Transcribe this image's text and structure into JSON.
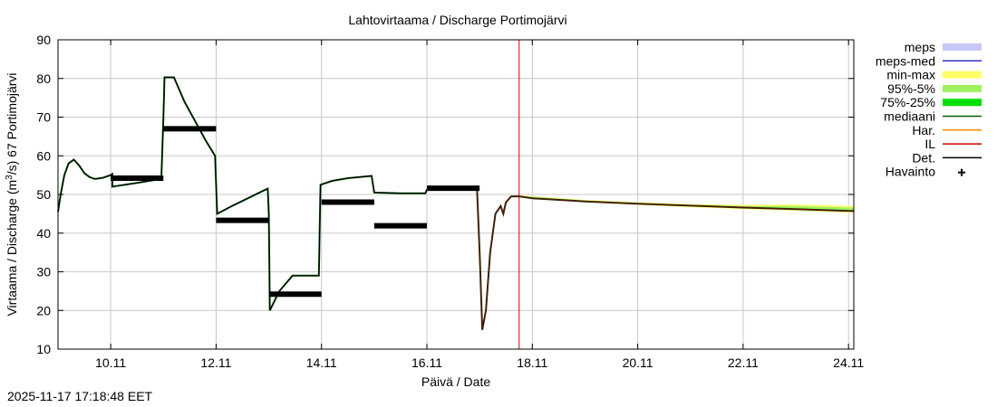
{
  "chart_data": {
    "type": "line",
    "title": "Lahtovirtaama / Discharge  Portimojärvi",
    "xlabel": "Päivä / Date",
    "ylabel_main": "Virtaama / Discharge (m",
    "ylabel_sup": "3",
    "ylabel_tail": "/s)  67 Portimojärvi",
    "timestamp": "2025-11-17 17:18:48 EET",
    "xlim": [
      9.0,
      24.1
    ],
    "ylim": [
      10,
      90
    ],
    "yticks": [
      10,
      20,
      30,
      40,
      50,
      60,
      70,
      80,
      90
    ],
    "xticks": [
      {
        "v": 10.0,
        "label": "10.11"
      },
      {
        "v": 12.0,
        "label": "12.11"
      },
      {
        "v": 14.0,
        "label": "14.11"
      },
      {
        "v": 16.0,
        "label": "16.11"
      },
      {
        "v": 18.0,
        "label": "18.11"
      },
      {
        "v": 20.0,
        "label": "20.11"
      },
      {
        "v": 22.0,
        "label": "22.11"
      },
      {
        "v": 24.0,
        "label": "24.11"
      }
    ],
    "now_x": 17.75,
    "legend": [
      {
        "label": "meps",
        "kind": "band",
        "color": "#c8c8f8"
      },
      {
        "label": "meps-med",
        "kind": "line",
        "color": "#3030c0"
      },
      {
        "label": "min-max",
        "kind": "band",
        "color": "#ffff66"
      },
      {
        "label": "95%-5%",
        "kind": "band",
        "color": "#a0f060"
      },
      {
        "label": "75%-25%",
        "kind": "band",
        "color": "#00e000"
      },
      {
        "label": "mediaani",
        "kind": "line",
        "color": "#006400"
      },
      {
        "label": "Har.",
        "kind": "line",
        "color": "#ff8c00"
      },
      {
        "label": "IL",
        "kind": "line",
        "color": "#cc0000"
      },
      {
        "label": "Det.",
        "kind": "line",
        "color": "#000000"
      },
      {
        "label": "Havainto",
        "kind": "marker",
        "color": "#000000"
      }
    ],
    "simulation": [
      [
        9.0,
        45.5
      ],
      [
        9.05,
        50
      ],
      [
        9.12,
        55
      ],
      [
        9.2,
        58
      ],
      [
        9.3,
        59
      ],
      [
        9.4,
        57.5
      ],
      [
        9.5,
        55.5
      ],
      [
        9.6,
        54.5
      ],
      [
        9.7,
        54
      ],
      [
        9.85,
        54.3
      ],
      [
        10.0,
        55
      ],
      [
        10.03,
        55.3
      ],
      [
        10.03,
        52
      ],
      [
        10.5,
        53
      ],
      [
        10.95,
        54
      ],
      [
        10.96,
        54
      ],
      [
        11.0,
        70
      ],
      [
        11.02,
        80.3
      ],
      [
        11.2,
        80.3
      ],
      [
        11.4,
        74
      ],
      [
        11.6,
        69
      ],
      [
        11.8,
        64
      ],
      [
        11.98,
        60
      ],
      [
        12.02,
        45
      ],
      [
        12.3,
        47
      ],
      [
        12.6,
        49
      ],
      [
        12.9,
        51
      ],
      [
        12.98,
        51.5
      ],
      [
        13.0,
        45
      ],
      [
        13.02,
        20
      ],
      [
        13.2,
        25
      ],
      [
        13.45,
        29
      ],
      [
        13.95,
        29
      ],
      [
        13.98,
        52.5
      ],
      [
        14.2,
        53.5
      ],
      [
        14.5,
        54.2
      ],
      [
        14.95,
        54.8
      ],
      [
        15.0,
        50.5
      ],
      [
        15.5,
        50.3
      ],
      [
        15.97,
        50.3
      ],
      [
        16.0,
        51.2
      ],
      [
        16.5,
        51.4
      ],
      [
        16.95,
        51.4
      ],
      [
        17.0,
        35
      ],
      [
        17.05,
        15
      ],
      [
        17.12,
        20
      ],
      [
        17.2,
        35
      ],
      [
        17.3,
        45
      ],
      [
        17.4,
        47
      ],
      [
        17.45,
        45
      ],
      [
        17.5,
        48
      ],
      [
        17.6,
        49.5
      ],
      [
        17.75,
        49.5
      ],
      [
        18.0,
        49
      ],
      [
        19.0,
        48.2
      ],
      [
        20.0,
        47.6
      ],
      [
        21.0,
        47.1
      ],
      [
        22.0,
        46.6
      ],
      [
        23.0,
        46.2
      ],
      [
        24.1,
        45.7
      ]
    ],
    "forecast_band": [
      [
        17.75,
        49.8,
        49.3
      ],
      [
        19.0,
        48.6,
        48.0
      ],
      [
        20.0,
        48.0,
        47.3
      ],
      [
        21.0,
        47.5,
        46.7
      ],
      [
        22.0,
        47.3,
        46.2
      ],
      [
        23.0,
        47.4,
        45.8
      ],
      [
        24.1,
        47.0,
        45.3
      ]
    ],
    "observations": [
      {
        "from": 10.0,
        "to": 11.0,
        "value": 54.2
      },
      {
        "from": 11.0,
        "to": 12.0,
        "value": 67.0
      },
      {
        "from": 12.0,
        "to": 13.0,
        "value": 43.3
      },
      {
        "from": 13.0,
        "to": 14.0,
        "value": 24.2
      },
      {
        "from": 14.0,
        "to": 15.0,
        "value": 48.0
      },
      {
        "from": 15.0,
        "to": 16.0,
        "value": 41.9
      },
      {
        "from": 16.0,
        "to": 17.0,
        "value": 51.6
      }
    ]
  }
}
